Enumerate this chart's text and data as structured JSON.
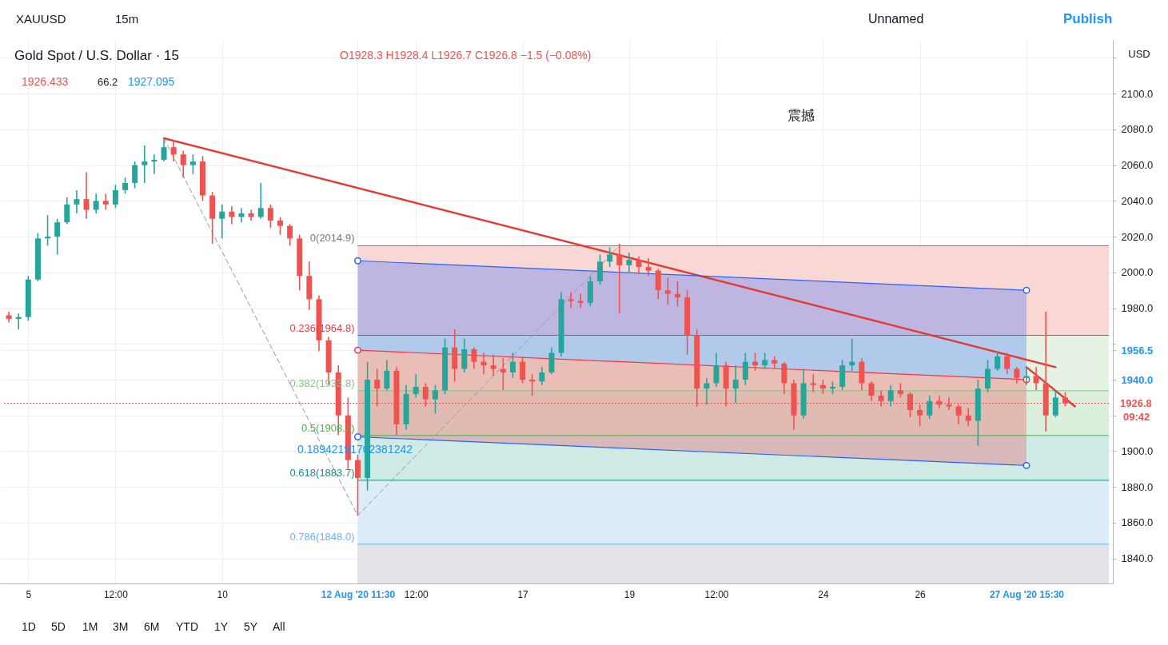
{
  "chart_data": {
    "type": "candlestick",
    "title": "Gold Spot / U.S. Dollar · 15",
    "subtitle": "O1928.3 H1928.4 L1926.7 C1926.8 −1.5 (−0.08%)",
    "ylabel": "USD",
    "categories": [
      null,
      null,
      "5",
      null,
      null,
      null,
      null,
      null,
      null,
      null,
      null,
      "12:00",
      null,
      null,
      null,
      null,
      null,
      null,
      null,
      null,
      null,
      null,
      "10",
      null,
      null,
      null,
      null,
      null,
      null,
      null,
      null,
      null,
      null,
      null,
      null,
      null,
      "12 Aug '20 11:30",
      null,
      null,
      null,
      null,
      null,
      "12:00",
      null,
      null,
      null,
      null,
      null,
      null,
      null,
      null,
      null,
      null,
      "17",
      null,
      null,
      null,
      null,
      null,
      null,
      null,
      null,
      null,
      null,
      "19",
      null,
      null,
      null,
      null,
      null,
      null,
      null,
      null,
      "12:00",
      null,
      null,
      null,
      null,
      null,
      null,
      null,
      null,
      null,
      null,
      "24",
      null,
      null,
      null,
      null,
      null,
      null,
      null,
      null,
      null,
      "26",
      null,
      null,
      null,
      null,
      null,
      null,
      null,
      null,
      null,
      null,
      "27 Aug '20 15:30",
      null,
      null,
      null,
      null,
      null,
      null,
      null,
      null
    ],
    "ohlc": [
      [
        1976,
        1978,
        1972,
        1974
      ],
      [
        1974,
        1977,
        1968,
        1975
      ],
      [
        1975,
        1998,
        1973,
        1996
      ],
      [
        1996,
        2022,
        1995,
        2019
      ],
      [
        2019,
        2032,
        2015,
        2020
      ],
      [
        2020,
        2030,
        2010,
        2028
      ],
      [
        2028,
        2042,
        2027,
        2038
      ],
      [
        2038,
        2046,
        2033,
        2041
      ],
      [
        2041,
        2056,
        2030,
        2035
      ],
      [
        2035,
        2044,
        2033,
        2040
      ],
      [
        2040,
        2044,
        2035,
        2038
      ],
      [
        2038,
        2049,
        2036,
        2046
      ],
      [
        2046,
        2053,
        2044,
        2050
      ],
      [
        2050,
        2062,
        2047,
        2060
      ],
      [
        2060,
        2071,
        2050,
        2062
      ],
      [
        2062,
        2066,
        2055,
        2063
      ],
      [
        2063,
        2075,
        2062,
        2070
      ],
      [
        2070,
        2074,
        2062,
        2066
      ],
      [
        2066,
        2068,
        2053,
        2060
      ],
      [
        2060,
        2066,
        2055,
        2062
      ],
      [
        2062,
        2065,
        2040,
        2043
      ],
      [
        2043,
        2045,
        2016,
        2030
      ],
      [
        2030,
        2038,
        2019,
        2034
      ],
      [
        2034,
        2037,
        2027,
        2031
      ],
      [
        2031,
        2036,
        2028,
        2033
      ],
      [
        2033,
        2035,
        2029,
        2031
      ],
      [
        2031,
        2050,
        2030,
        2036
      ],
      [
        2036,
        2038,
        2025,
        2029
      ],
      [
        2029,
        2031,
        2021,
        2026
      ],
      [
        2026,
        2027,
        2015,
        2019
      ],
      [
        2019,
        2021,
        1990,
        1998
      ],
      [
        1998,
        2006,
        1979,
        1985
      ],
      [
        1985,
        1987,
        1956,
        1962
      ],
      [
        1962,
        1964,
        1937,
        1944
      ],
      [
        1944,
        1948,
        1909,
        1920
      ],
      [
        1920,
        1930,
        1890,
        1895
      ],
      [
        1895,
        1898,
        1864,
        1885
      ],
      [
        1885,
        1950,
        1878,
        1940
      ],
      [
        1940,
        1946,
        1925,
        1935
      ],
      [
        1935,
        1951,
        1934,
        1945
      ],
      [
        1945,
        1947,
        1909,
        1915
      ],
      [
        1915,
        1937,
        1912,
        1932
      ],
      [
        1932,
        1943,
        1930,
        1936
      ],
      [
        1936,
        1938,
        1925,
        1929
      ],
      [
        1929,
        1937,
        1921,
        1934
      ],
      [
        1934,
        1963,
        1932,
        1958
      ],
      [
        1958,
        1968,
        1939,
        1946
      ],
      [
        1946,
        1963,
        1944,
        1957
      ],
      [
        1957,
        1958,
        1946,
        1950
      ],
      [
        1950,
        1955,
        1943,
        1948
      ],
      [
        1948,
        1954,
        1942,
        1946
      ],
      [
        1946,
        1952,
        1934,
        1944
      ],
      [
        1944,
        1955,
        1941,
        1950
      ],
      [
        1950,
        1953,
        1938,
        1940
      ],
      [
        1940,
        1943,
        1931,
        1939
      ],
      [
        1939,
        1947,
        1937,
        1944
      ],
      [
        1944,
        1958,
        1943,
        1955
      ],
      [
        1955,
        1989,
        1953,
        1985
      ],
      [
        1985,
        1989,
        1980,
        1984
      ],
      [
        1984,
        1988,
        1980,
        1983
      ],
      [
        1983,
        1998,
        1981,
        1995
      ],
      [
        1995,
        2010,
        1993,
        2006
      ],
      [
        2006,
        2014,
        2003,
        2010
      ],
      [
        2010,
        2016,
        1977,
        2004
      ],
      [
        2004,
        2011,
        2000,
        2007
      ],
      [
        2007,
        2009,
        1999,
        2003
      ],
      [
        2003,
        2008,
        1998,
        2001
      ],
      [
        2001,
        2002,
        1985,
        1990
      ],
      [
        1990,
        1997,
        1982,
        1988
      ],
      [
        1988,
        1995,
        1981,
        1986
      ],
      [
        1986,
        1990,
        1954,
        1965
      ],
      [
        1965,
        1968,
        1925,
        1935
      ],
      [
        1935,
        1941,
        1926,
        1938
      ],
      [
        1938,
        1955,
        1936,
        1948
      ],
      [
        1948,
        1950,
        1925,
        1935
      ],
      [
        1935,
        1948,
        1927,
        1940
      ],
      [
        1940,
        1955,
        1937,
        1950
      ],
      [
        1950,
        1955,
        1945,
        1948
      ],
      [
        1948,
        1955,
        1946,
        1951
      ],
      [
        1951,
        1953,
        1946,
        1949
      ],
      [
        1949,
        1950,
        1932,
        1938
      ],
      [
        1938,
        1940,
        1912,
        1920
      ],
      [
        1920,
        1946,
        1918,
        1938
      ],
      [
        1938,
        1943,
        1933,
        1937
      ],
      [
        1937,
        1940,
        1932,
        1935
      ],
      [
        1935,
        1939,
        1932,
        1936
      ],
      [
        1936,
        1951,
        1934,
        1948
      ],
      [
        1948,
        1963,
        1945,
        1950
      ],
      [
        1950,
        1952,
        1934,
        1938
      ],
      [
        1938,
        1939,
        1928,
        1931
      ],
      [
        1931,
        1934,
        1925,
        1928
      ],
      [
        1928,
        1937,
        1925,
        1934
      ],
      [
        1934,
        1938,
        1930,
        1932
      ],
      [
        1932,
        1933,
        1919,
        1923
      ],
      [
        1923,
        1926,
        1914,
        1920
      ],
      [
        1920,
        1931,
        1918,
        1928
      ],
      [
        1928,
        1931,
        1924,
        1926
      ],
      [
        1926,
        1930,
        1923,
        1925
      ],
      [
        1925,
        1926,
        1915,
        1920
      ],
      [
        1920,
        1924,
        1914,
        1917
      ],
      [
        1917,
        1940,
        1903,
        1935
      ],
      [
        1935,
        1951,
        1933,
        1946
      ],
      [
        1946,
        1956,
        1945,
        1953
      ],
      [
        1953,
        1955,
        1943,
        1946
      ],
      [
        1946,
        1947,
        1938,
        1941
      ],
      [
        1941,
        1947,
        1937,
        1942
      ],
      [
        1942,
        1947,
        1934,
        1938
      ],
      [
        1938,
        1978,
        1911,
        1920
      ],
      [
        1920,
        1934,
        1919,
        1930
      ],
      [
        1930,
        1933,
        1925,
        1926.8
      ],
      null,
      null,
      null,
      null
    ],
    "colors": [
      "#ef5350",
      "#26a69a",
      "#26a69a",
      "#26a69a",
      "#26a69a",
      "#26a69a",
      "#26a69a",
      "#26a69a",
      "#ef5350",
      "#26a69a",
      "#ef5350",
      "#26a69a",
      "#26a69a",
      "#26a69a",
      "#26a69a",
      "#26a69a",
      "#26a69a",
      "#ef5350",
      "#ef5350",
      "#26a69a",
      "#ef5350",
      "#ef5350",
      "#26a69a",
      "#ef5350",
      "#26a69a",
      "#ef5350",
      "#26a69a",
      "#ef5350",
      "#ef5350",
      "#ef5350",
      "#ef5350",
      "#ef5350",
      "#ef5350",
      "#ef5350",
      "#ef5350",
      "#ef5350",
      "#ef5350",
      "#26a69a",
      "#ef5350",
      "#26a69a",
      "#ef5350",
      "#26a69a",
      "#26a69a",
      "#ef5350",
      "#26a69a",
      "#26a69a",
      "#ef5350",
      "#26a69a",
      "#ef5350",
      "#ef5350",
      "#ef5350",
      "#ef5350",
      "#26a69a",
      "#ef5350",
      "#ef5350",
      "#26a69a",
      "#26a69a",
      "#26a69a",
      "#ef5350",
      "#ef5350",
      "#26a69a",
      "#26a69a",
      "#26a69a",
      "#ef5350",
      "#26a69a",
      "#ef5350",
      "#ef5350",
      "#ef5350",
      "#ef5350",
      "#ef5350",
      "#ef5350",
      "#ef5350",
      "#26a69a",
      "#26a69a",
      "#ef5350",
      "#26a69a",
      "#26a69a",
      "#ef5350",
      "#26a69a",
      "#ef5350",
      "#ef5350",
      "#ef5350",
      "#26a69a",
      "#ef5350",
      "#ef5350",
      "#26a69a",
      "#26a69a",
      "#26a69a",
      "#ef5350",
      "#ef5350",
      "#ef5350",
      "#26a69a",
      "#ef5350",
      "#ef5350",
      "#ef5350",
      "#26a69a",
      "#ef5350",
      "#ef5350",
      "#ef5350",
      "#ef5350",
      "#26a69a",
      "#26a69a",
      "#26a69a",
      "#ef5350",
      "#ef5350",
      "#26a69a",
      "#ef5350",
      "#ef5350",
      "#26a69a",
      "#ef5350",
      null,
      null,
      null,
      null
    ],
    "series": [
      {
        "type": "line",
        "color": "#e53935",
        "values": [
          null,
          null,
          null,
          null,
          null,
          null,
          null,
          null,
          null,
          null,
          null,
          null,
          null,
          null,
          null,
          null,
          2075,
          null,
          null,
          null,
          null,
          null,
          null,
          null,
          null,
          null,
          null,
          null,
          null,
          null,
          null,
          null,
          null,
          null,
          null,
          null,
          null,
          null,
          null,
          null,
          null,
          null,
          null,
          null,
          null,
          null,
          null,
          null,
          null,
          null,
          null,
          null,
          null,
          null,
          null,
          null,
          null,
          null,
          null,
          null,
          null,
          null,
          null,
          null,
          null,
          null,
          null,
          null,
          null,
          null,
          null,
          null,
          null,
          null,
          null,
          null,
          null,
          null,
          null,
          null,
          null,
          null,
          null,
          null,
          null,
          null,
          null,
          null,
          null,
          null,
          null,
          null,
          null,
          null,
          null,
          null,
          null,
          null,
          null,
          null,
          null,
          null,
          null,
          null,
          null,
          null,
          null,
          null,
          1947,
          null,
          null,
          null,
          null,
          null
        ]
      },
      {
        "type": "line",
        "color": "#e53935",
        "values": [
          null,
          null,
          null,
          null,
          null,
          null,
          null,
          null,
          null,
          null,
          null,
          null,
          null,
          null,
          null,
          null,
          null,
          null,
          null,
          null,
          null,
          null,
          null,
          null,
          null,
          null,
          null,
          null,
          null,
          null,
          null,
          null,
          null,
          null,
          null,
          null,
          null,
          null,
          null,
          null,
          null,
          null,
          null,
          null,
          null,
          null,
          null,
          null,
          null,
          null,
          null,
          null,
          null,
          null,
          null,
          null,
          null,
          null,
          null,
          null,
          null,
          null,
          null,
          null,
          null,
          null,
          null,
          null,
          null,
          null,
          null,
          null,
          null,
          null,
          null,
          null,
          null,
          null,
          null,
          null,
          null,
          null,
          null,
          null,
          null,
          null,
          null,
          null,
          null,
          null,
          null,
          null,
          null,
          null,
          null,
          null,
          null,
          null,
          null,
          null,
          null,
          null,
          null,
          null,
          null,
          1947,
          null,
          null,
          null,
          null,
          1925,
          null,
          null,
          null
        ]
      },
      {
        "type": "line",
        "color": "#9598a1",
        "line_style": "dashed",
        "values": [
          null,
          null,
          null,
          null,
          null,
          null,
          null,
          null,
          null,
          null,
          null,
          null,
          null,
          null,
          null,
          null,
          2075,
          null,
          null,
          null,
          null,
          null,
          null,
          null,
          null,
          null,
          null,
          null,
          null,
          null,
          null,
          null,
          null,
          null,
          null,
          null,
          1864,
          null,
          null,
          null,
          null,
          null,
          null,
          null,
          null,
          null,
          null,
          null,
          null,
          null,
          null,
          null,
          null,
          null,
          null,
          null,
          null,
          null,
          null,
          null,
          null,
          null,
          null,
          2014.9,
          null,
          null,
          null,
          null,
          null,
          null,
          null,
          null,
          null,
          null,
          null,
          null,
          null,
          null,
          null,
          null,
          null,
          null,
          null,
          null,
          null,
          null,
          null,
          null,
          null,
          null,
          null,
          null,
          null,
          null,
          null,
          null,
          null,
          null,
          null,
          null,
          null,
          null,
          null,
          null,
          null,
          null,
          null,
          null,
          null,
          null,
          null,
          null,
          null,
          null
        ]
      },
      {
        "type": "line",
        "color": "#2962ff",
        "marker": "circle",
        "values": [
          null,
          null,
          null,
          null,
          null,
          null,
          null,
          null,
          null,
          null,
          null,
          null,
          null,
          null,
          null,
          null,
          null,
          null,
          null,
          null,
          null,
          null,
          null,
          null,
          null,
          null,
          null,
          null,
          null,
          null,
          null,
          null,
          null,
          null,
          null,
          null,
          2006.5,
          null,
          null,
          null,
          null,
          null,
          null,
          null,
          null,
          null,
          null,
          null,
          null,
          null,
          null,
          null,
          null,
          null,
          null,
          null,
          null,
          null,
          null,
          null,
          null,
          null,
          null,
          null,
          null,
          null,
          null,
          null,
          null,
          null,
          null,
          null,
          null,
          null,
          null,
          null,
          null,
          null,
          null,
          null,
          null,
          null,
          null,
          null,
          null,
          null,
          null,
          null,
          null,
          null,
          null,
          null,
          null,
          null,
          null,
          null,
          null,
          null,
          null,
          null,
          null,
          null,
          null,
          null,
          null,
          1990,
          null,
          null,
          null,
          null,
          null,
          null,
          null,
          null
        ],
        "lower": [
          null,
          null,
          null,
          null,
          null,
          null,
          null,
          null,
          null,
          null,
          null,
          null,
          null,
          null,
          null,
          null,
          null,
          null,
          null,
          null,
          null,
          null,
          null,
          null,
          null,
          null,
          null,
          null,
          null,
          null,
          null,
          null,
          null,
          null,
          null,
          null,
          1956.5,
          null,
          null,
          null,
          null,
          null,
          null,
          null,
          null,
          null,
          null,
          null,
          null,
          null,
          null,
          null,
          null,
          null,
          null,
          null,
          null,
          null,
          null,
          null,
          null,
          null,
          null,
          null,
          null,
          null,
          null,
          null,
          null,
          null,
          null,
          null,
          null,
          null,
          null,
          null,
          null,
          null,
          null,
          null,
          null,
          null,
          null,
          null,
          null,
          null,
          null,
          null,
          null,
          null,
          null,
          null,
          null,
          null,
          null,
          null,
          null,
          null,
          null,
          null,
          null,
          null,
          null,
          null,
          null,
          1940,
          null,
          null,
          null,
          null,
          null,
          null,
          null,
          null
        ],
        "upper": [
          null,
          null,
          null,
          null,
          null,
          null,
          null,
          null,
          null,
          null,
          null,
          null,
          null,
          null,
          null,
          null,
          null,
          null,
          null,
          null,
          null,
          null,
          null,
          null,
          null,
          null,
          null,
          null,
          null,
          null,
          null,
          null,
          null,
          null,
          null,
          null,
          2006.5,
          null,
          null,
          null,
          null,
          null,
          null,
          null,
          null,
          null,
          null,
          null,
          null,
          null,
          null,
          null,
          null,
          null,
          null,
          null,
          null,
          null,
          null,
          null,
          null,
          null,
          null,
          null,
          null,
          null,
          null,
          null,
          null,
          null,
          null,
          null,
          null,
          null,
          null,
          null,
          null,
          null,
          null,
          null,
          null,
          null,
          null,
          null,
          null,
          null,
          null,
          null,
          null,
          null,
          null,
          null,
          null,
          null,
          null,
          null,
          null,
          null,
          null,
          null,
          null,
          null,
          null,
          null,
          null,
          1990,
          null,
          null,
          null,
          null,
          null,
          null,
          null,
          null
        ]
      },
      {
        "type": "line",
        "color": "#f23645",
        "marker": "circle",
        "values": [
          null,
          null,
          null,
          null,
          null,
          null,
          null,
          null,
          null,
          null,
          null,
          null,
          null,
          null,
          null,
          null,
          null,
          null,
          null,
          null,
          null,
          null,
          null,
          null,
          null,
          null,
          null,
          null,
          null,
          null,
          null,
          null,
          null,
          null,
          null,
          null,
          1956.5,
          null,
          null,
          null,
          null,
          null,
          null,
          null,
          null,
          null,
          null,
          null,
          null,
          null,
          null,
          null,
          null,
          null,
          null,
          null,
          null,
          null,
          null,
          null,
          null,
          null,
          null,
          null,
          null,
          null,
          null,
          null,
          null,
          null,
          null,
          null,
          null,
          null,
          null,
          null,
          null,
          null,
          null,
          null,
          null,
          null,
          null,
          null,
          null,
          null,
          null,
          null,
          null,
          null,
          null,
          null,
          null,
          null,
          null,
          null,
          null,
          null,
          null,
          null,
          null,
          null,
          null,
          null,
          null,
          1940,
          null,
          null,
          null,
          null,
          null,
          null,
          null,
          null
        ],
        "lower": [
          null,
          null,
          null,
          null,
          null,
          null,
          null,
          null,
          null,
          null,
          null,
          null,
          null,
          null,
          null,
          null,
          null,
          null,
          null,
          null,
          null,
          null,
          null,
          null,
          null,
          null,
          null,
          null,
          null,
          null,
          null,
          null,
          null,
          null,
          null,
          null,
          1908,
          null,
          null,
          null,
          null,
          null,
          null,
          null,
          null,
          null,
          null,
          null,
          null,
          null,
          null,
          null,
          null,
          null,
          null,
          null,
          null,
          null,
          null,
          null,
          null,
          null,
          null,
          null,
          null,
          null,
          null,
          null,
          null,
          null,
          null,
          null,
          null,
          null,
          null,
          null,
          null,
          null,
          null,
          null,
          null,
          null,
          null,
          null,
          null,
          null,
          null,
          null,
          null,
          null,
          null,
          null,
          null,
          null,
          null,
          null,
          null,
          null,
          null,
          null,
          null,
          null,
          null,
          null,
          null,
          1892,
          null,
          null,
          null,
          null,
          null,
          null,
          null,
          null
        ],
        "upper": [
          null,
          null,
          null,
          null,
          null,
          null,
          null,
          null,
          null,
          null,
          null,
          null,
          null,
          null,
          null,
          null,
          null,
          null,
          null,
          null,
          null,
          null,
          null,
          null,
          null,
          null,
          null,
          null,
          null,
          null,
          null,
          null,
          null,
          null,
          null,
          null,
          1956.5,
          null,
          null,
          null,
          null,
          null,
          null,
          null,
          null,
          null,
          null,
          null,
          null,
          null,
          null,
          null,
          null,
          null,
          null,
          null,
          null,
          null,
          null,
          null,
          null,
          null,
          null,
          null,
          null,
          null,
          null,
          null,
          null,
          null,
          null,
          null,
          null,
          null,
          null,
          null,
          null,
          null,
          null,
          null,
          null,
          null,
          null,
          null,
          null,
          null,
          null,
          null,
          null,
          null,
          null,
          null,
          null,
          null,
          null,
          null,
          null,
          null,
          null,
          null,
          null,
          null,
          null,
          null,
          null,
          1940,
          null,
          null,
          null,
          null,
          null,
          null,
          null,
          null
        ]
      },
      {
        "type": "line",
        "color": "#2962ff",
        "marker": "circle",
        "values": [
          null,
          null,
          null,
          null,
          null,
          null,
          null,
          null,
          null,
          null,
          null,
          null,
          null,
          null,
          null,
          null,
          null,
          null,
          null,
          null,
          null,
          null,
          null,
          null,
          null,
          null,
          null,
          null,
          null,
          null,
          null,
          null,
          null,
          null,
          null,
          null,
          1908,
          null,
          null,
          null,
          null,
          null,
          null,
          null,
          null,
          null,
          null,
          null,
          null,
          null,
          null,
          null,
          null,
          null,
          null,
          null,
          null,
          null,
          null,
          null,
          null,
          null,
          null,
          null,
          null,
          null,
          null,
          null,
          null,
          null,
          null,
          null,
          null,
          null,
          null,
          null,
          null,
          null,
          null,
          null,
          null,
          null,
          null,
          null,
          null,
          null,
          null,
          null,
          null,
          null,
          null,
          null,
          null,
          null,
          null,
          null,
          null,
          null,
          null,
          null,
          null,
          null,
          null,
          null,
          null,
          1892,
          null,
          null,
          null,
          null,
          null,
          null,
          null,
          null
        ]
      }
    ],
    "bands": [
      {
        "axis": "y",
        "from": 2014.9,
        "to": 1964.8,
        "color": "#f9d7d5"
      },
      {
        "axis": "y",
        "from": 1964.8,
        "to": 1933.8,
        "color": "#e6f3e4"
      },
      {
        "axis": "y",
        "from": 1933.8,
        "to": 1908.8,
        "color": "#dcefdc"
      },
      {
        "axis": "y",
        "from": 1908.8,
        "to": 1883.7,
        "color": "#d0ebe6"
      },
      {
        "axis": "y",
        "from": 1883.7,
        "to": 1848.0,
        "color": "#dcecf9"
      },
      {
        "axis": "y",
        "from": 1848.0,
        "to": 1826,
        "color": "#e2e3e8"
      }
    ],
    "ref_lines": [
      {
        "axis": "y",
        "value": 2014.9,
        "label": "0(2014.9)",
        "color": "#787b86"
      },
      {
        "axis": "y",
        "value": 1964.8,
        "label": "0.236(1964.8)",
        "color": "#f23645"
      },
      {
        "axis": "y",
        "value": 1933.8,
        "label": "0.382(1933.8)",
        "color": "#81c784"
      },
      {
        "axis": "y",
        "value": 1908.8,
        "label": "0.5(1908.8)",
        "color": "#4caf50"
      },
      {
        "axis": "y",
        "value": 1883.7,
        "label": "0.618(1883.7)",
        "color": "#089981"
      },
      {
        "axis": "y",
        "value": 1848.0,
        "label": "0.786(1848.0)",
        "color": "#64b5f6"
      },
      {
        "axis": "y",
        "value": 1926.8,
        "label": "1926.8",
        "color": "#ef5350",
        "line_style": "dotted"
      }
    ],
    "annotations": [
      "XAUUSD",
      "15m",
      "Unnamed",
      "Publish",
      "1926.433",
      "66.2",
      "1927.095",
      "震撼",
      "09:42",
      "1D",
      "5D",
      "1M",
      "3M",
      "6M",
      "YTD",
      "1Y",
      "5Y",
      "All",
      "0.18942191702381242"
    ],
    "ylim": [
      1826,
      2130
    ],
    "yticks": [
      {
        "value": 1840,
        "label": "1840.0"
      },
      {
        "value": 1860,
        "label": "1860.0"
      },
      {
        "value": 1880,
        "label": "1880.0"
      },
      {
        "value": 1900,
        "label": "1900.0"
      },
      {
        "value": 1920,
        "label": null
      },
      {
        "value": 1940,
        "label": "1940.0"
      },
      {
        "value": 1956.5,
        "label": "1956.5"
      },
      {
        "value": 1960,
        "label": null
      },
      {
        "value": 1980,
        "label": "1980.0"
      },
      {
        "value": 2000,
        "label": "2000.0"
      },
      {
        "value": 2020,
        "label": "2020.0"
      },
      {
        "value": 2040,
        "label": "2040.0"
      },
      {
        "value": 2060,
        "label": "2060.0"
      },
      {
        "value": 2080,
        "label": "2080.0"
      },
      {
        "value": 2100,
        "label": "2100.0"
      },
      {
        "value": 2120,
        "label": null
      }
    ],
    "grid": true
  }
}
